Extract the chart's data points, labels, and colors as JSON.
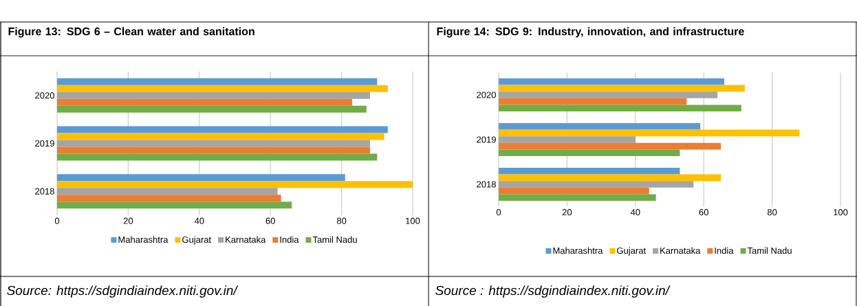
{
  "chart_data": [
    {
      "type": "bar",
      "orientation": "horizontal",
      "title": "Figure 13: SDG 6 – Clean water and sanitation",
      "categories": [
        "2020",
        "2019",
        "2018"
      ],
      "series": [
        {
          "name": "Maharashtra",
          "color": "#5b9bd5",
          "values": [
            90,
            93,
            81
          ]
        },
        {
          "name": "Gujarat",
          "color": "#ffc000",
          "values": [
            93,
            92,
            100
          ]
        },
        {
          "name": "Karnataka",
          "color": "#a5a5a5",
          "values": [
            88,
            88,
            62
          ]
        },
        {
          "name": "India",
          "color": "#ed7d31",
          "values": [
            83,
            88,
            63
          ]
        },
        {
          "name": "Tamil Nadu",
          "color": "#70ad47",
          "values": [
            87,
            90,
            66
          ]
        }
      ],
      "xlim": [
        0,
        100
      ],
      "xticks": [
        0,
        20,
        40,
        60,
        80,
        100
      ],
      "grid": "x",
      "legend": "bottom",
      "annotations": [
        "Source: https://sdgindiaindex.niti.gov.in/"
      ]
    },
    {
      "type": "bar",
      "orientation": "horizontal",
      "title": "Figure 14: SDG 9: Industry, innovation, and infrastructure",
      "categories": [
        "2020",
        "2019",
        "2018"
      ],
      "series": [
        {
          "name": "Maharashtra",
          "color": "#5b9bd5",
          "values": [
            66,
            59,
            53
          ]
        },
        {
          "name": "Gujarat",
          "color": "#ffc000",
          "values": [
            72,
            88,
            65
          ]
        },
        {
          "name": "Karnataka",
          "color": "#a5a5a5",
          "values": [
            64,
            40,
            57
          ]
        },
        {
          "name": "India",
          "color": "#ed7d31",
          "values": [
            55,
            65,
            44
          ]
        },
        {
          "name": "Tamil Nadu",
          "color": "#70ad47",
          "values": [
            71,
            53,
            46
          ]
        }
      ],
      "xlim": [
        0,
        100
      ],
      "xticks": [
        0,
        20,
        40,
        60,
        80,
        100
      ],
      "grid": "x",
      "legend": "bottom",
      "annotations": [
        "Source : https://sdgindiaindex.niti.gov.in/"
      ]
    }
  ]
}
